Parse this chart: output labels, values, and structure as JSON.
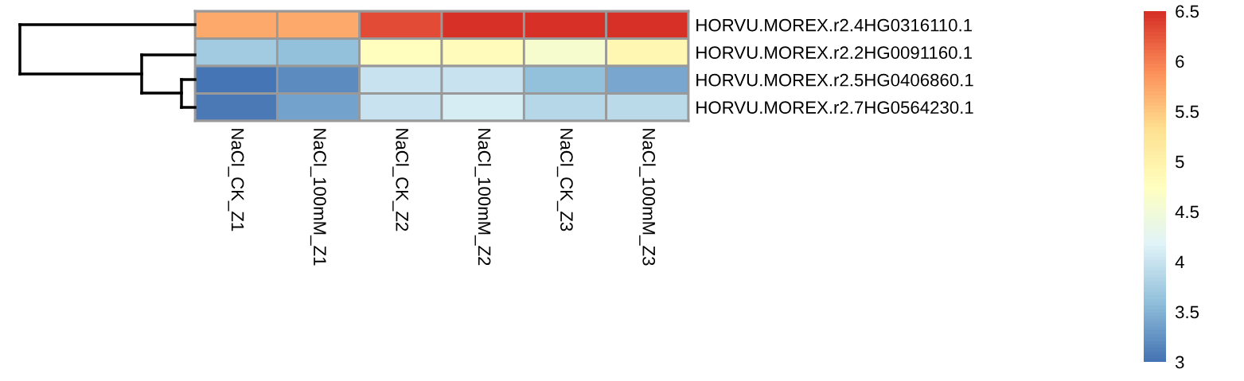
{
  "chart_data": {
    "type": "heatmap",
    "categories": [
      "NaCl_CK_Z1",
      "NaCl_100mM_Z1",
      "NaCl_CK_Z2",
      "NaCl_100mM_Z2",
      "NaCl_CK_Z3",
      "NaCl_100mM_Z3"
    ],
    "y_categories": [
      "HORVU.MOREX.r2.4HG0316110.1",
      "HORVU.MOREX.r2.2HG0091160.1",
      "HORVU.MOREX.r2.5HG0406860.1",
      "HORVU.MOREX.r2.7HG0564230.1"
    ],
    "cells": [
      [
        5.7,
        5.7,
        6.3,
        6.5,
        6.5,
        6.5
      ],
      [
        3.7,
        3.6,
        4.75,
        4.8,
        4.6,
        4.9
      ],
      [
        3.0,
        3.2,
        4.0,
        4.0,
        3.6,
        3.4
      ],
      [
        3.05,
        3.35,
        4.0,
        4.1,
        3.85,
        3.9
      ]
    ],
    "colors": [
      "#4575b4",
      "#91bfdb",
      "#e0f3f8",
      "#ffffbf",
      "#fee090",
      "#fc8d59",
      "#d73027"
    ],
    "clim": [
      3,
      6.5
    ],
    "cticks": [
      3,
      3.5,
      4,
      4.5,
      5,
      5.5,
      6,
      6.5
    ]
  }
}
